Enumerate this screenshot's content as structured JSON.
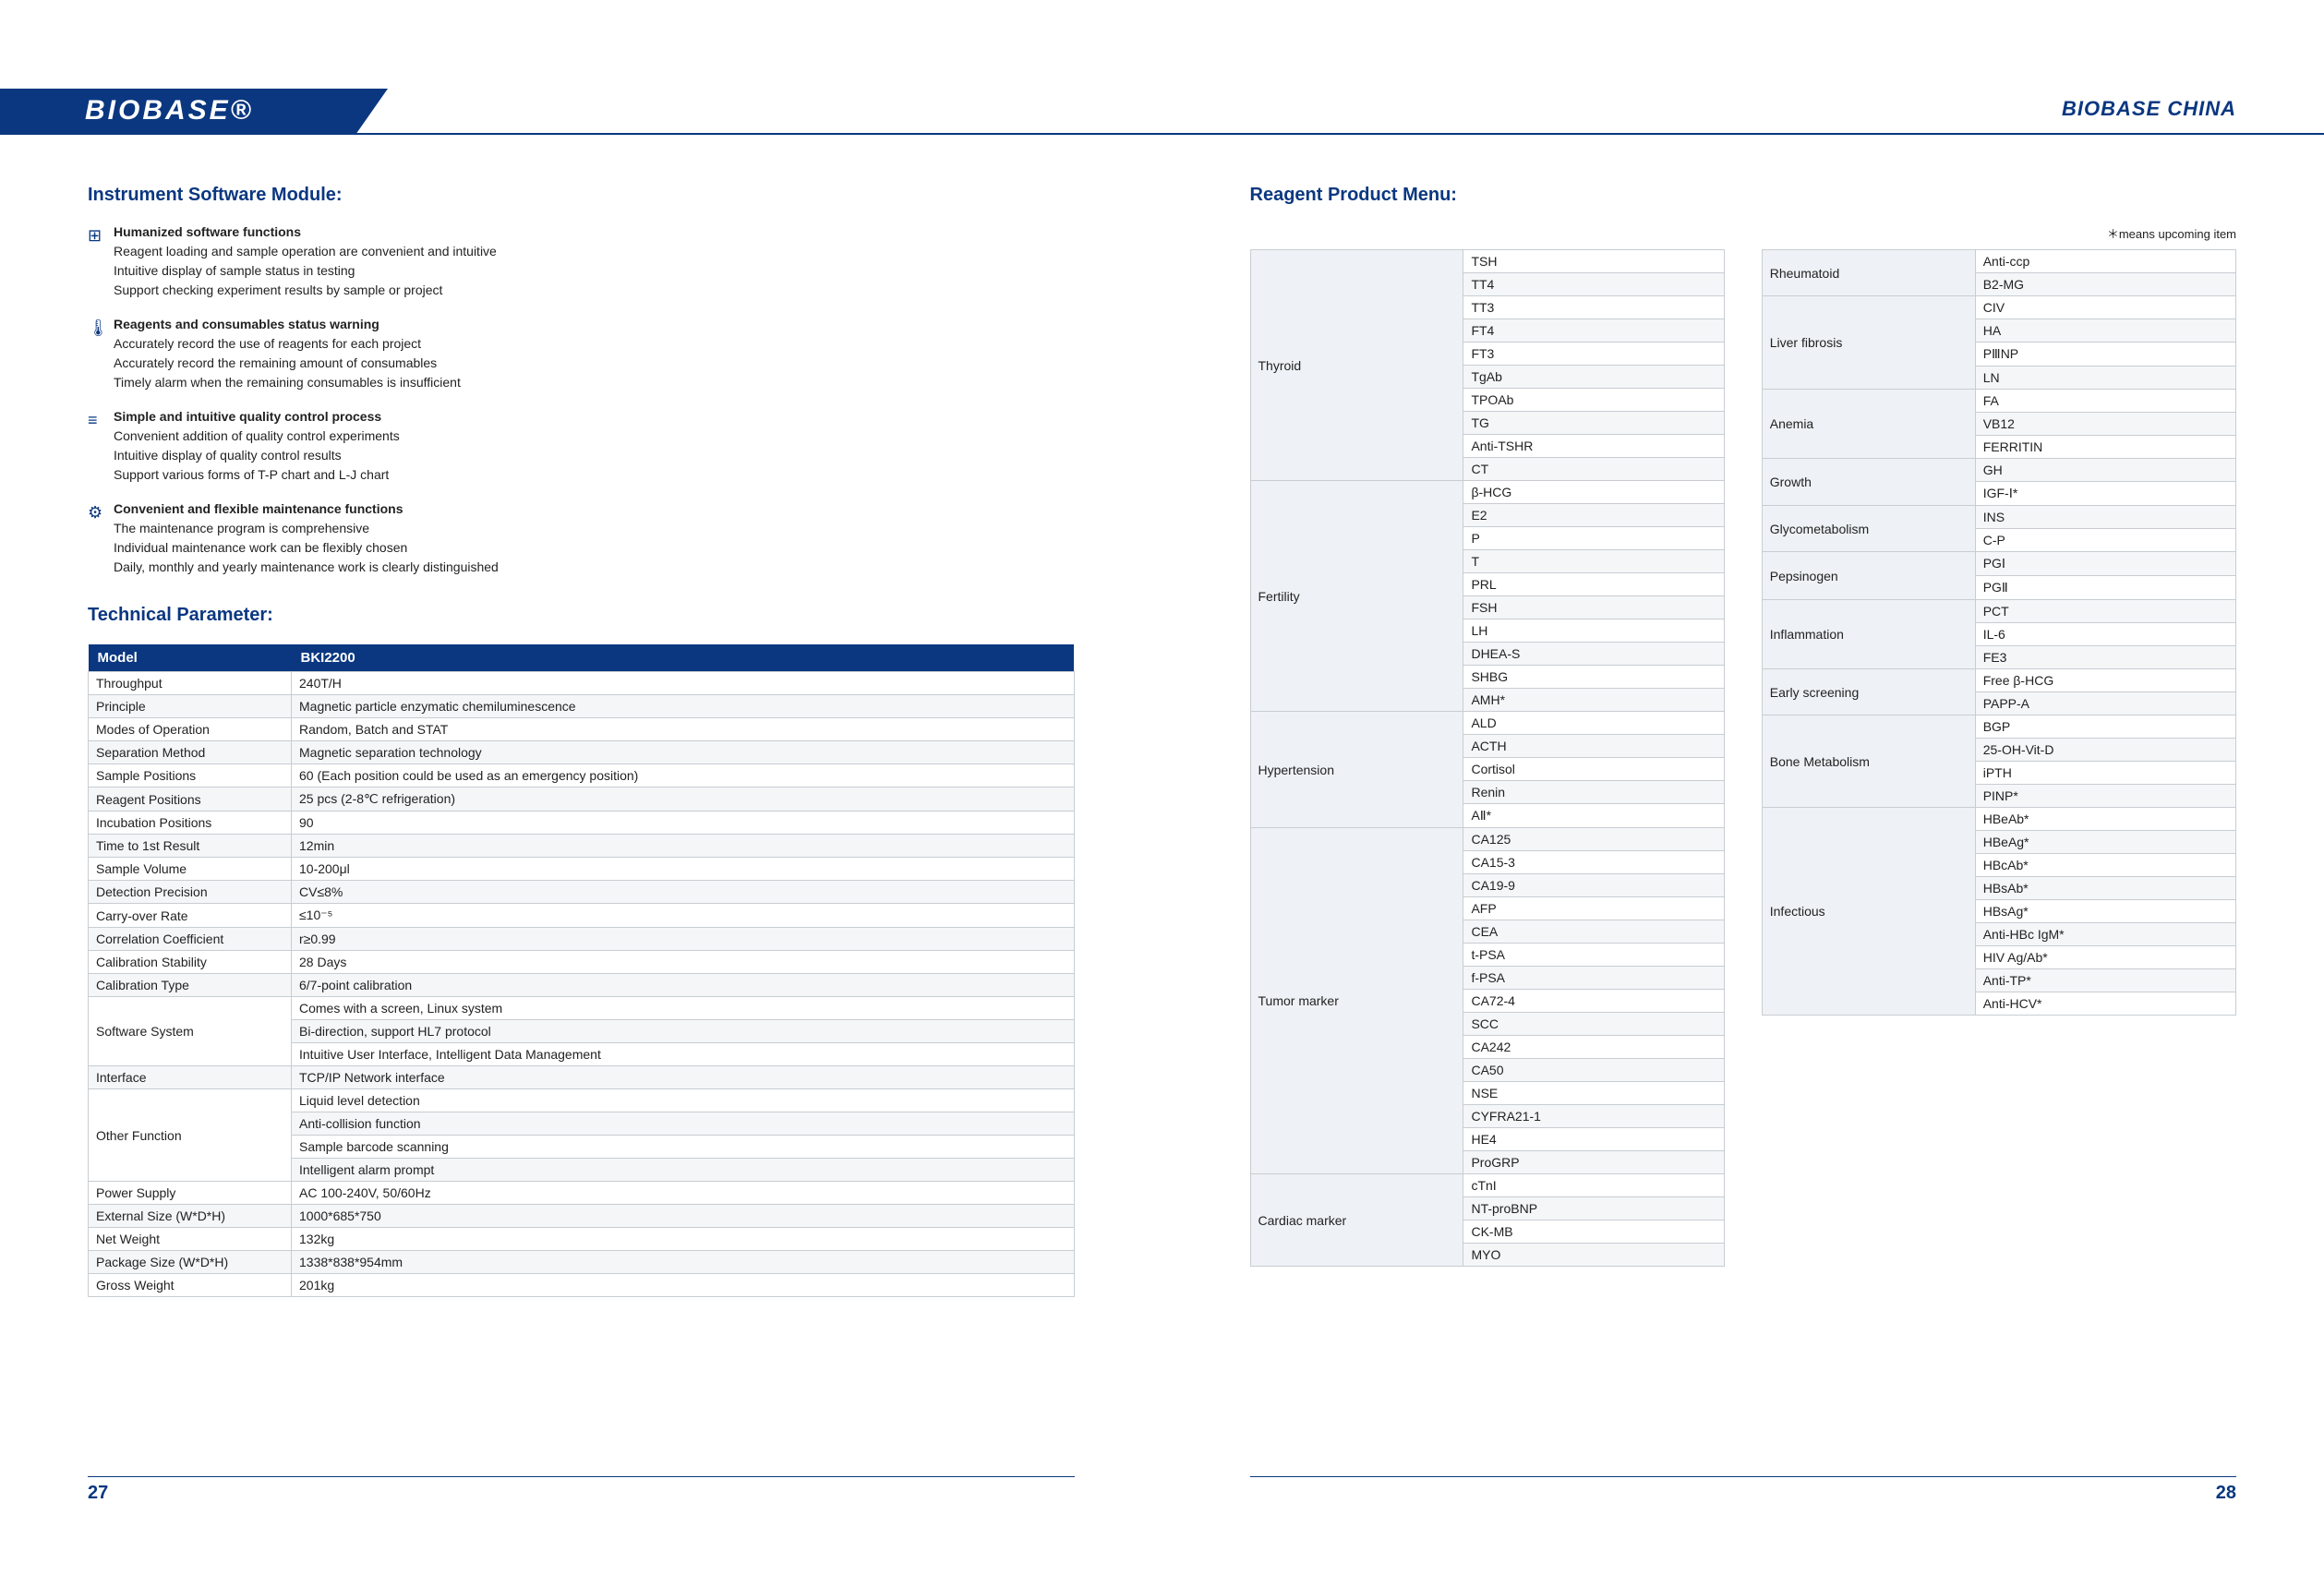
{
  "brand": "BIOBASE®",
  "brand_right": "BIOBASE CHINA",
  "page_left_num": "27",
  "page_right_num": "28",
  "left": {
    "section1_title": "Instrument Software Module:",
    "features": [
      {
        "icon": "⊞",
        "title": "Humanized software functions",
        "lines": [
          "Reagent loading and sample operation are convenient and intuitive",
          "Intuitive display of sample status in testing",
          "Support checking experiment results by sample or project"
        ]
      },
      {
        "icon": "🌡",
        "title": "Reagents and consumables status warning",
        "lines": [
          "Accurately record the use of reagents for each project",
          "Accurately record the remaining amount of consumables",
          "Timely alarm when the remaining consumables is insufficient"
        ]
      },
      {
        "icon": "≡",
        "title": "Simple and intuitive quality control process",
        "lines": [
          "Convenient addition of quality control experiments",
          "Intuitive display of quality control results",
          "Support various forms of T-P chart and L-J chart"
        ]
      },
      {
        "icon": "⚙",
        "title": "Convenient and flexible maintenance functions",
        "lines": [
          "The maintenance program is comprehensive",
          "Individual maintenance work can be flexibly chosen",
          "Daily, monthly and yearly maintenance work is clearly distinguished"
        ]
      }
    ],
    "section2_title": "Technical Parameter:",
    "params_header_label": "Model",
    "params_header_value": "BKI2200",
    "params": [
      [
        "Throughput",
        "240T/H"
      ],
      [
        "Principle",
        "Magnetic particle enzymatic chemiluminescence"
      ],
      [
        "Modes of Operation",
        "Random, Batch and STAT"
      ],
      [
        "Separation Method",
        "Magnetic separation technology"
      ],
      [
        "Sample Positions",
        "60 (Each position could be used as an emergency position)"
      ],
      [
        "Reagent Positions",
        "25 pcs (2-8℃ refrigeration)"
      ],
      [
        "Incubation Positions",
        "90"
      ],
      [
        "Time to 1st Result",
        "12min"
      ],
      [
        "Sample Volume",
        "10-200μl"
      ],
      [
        "Detection Precision",
        "CV≤8%"
      ],
      [
        "Carry-over Rate",
        "≤10⁻⁵"
      ],
      [
        "Correlation Coefficient",
        "r≥0.99"
      ],
      [
        "Calibration Stability",
        "28 Days"
      ],
      [
        "Calibration Type",
        "6/7-point calibration"
      ]
    ],
    "software_label": "Software System",
    "software_rows": [
      "Comes with a screen, Linux system",
      "Bi-direction, support HL7 protocol",
      "Intuitive User Interface, Intelligent Data Management"
    ],
    "interface_label": "Interface",
    "interface_value": "TCP/IP Network interface",
    "other_label": "Other Function",
    "other_rows": [
      "Liquid level detection",
      "Anti-collision function",
      "Sample barcode scanning",
      "Intelligent alarm prompt"
    ],
    "params2": [
      [
        "Power Supply",
        "AC 100-240V, 50/60Hz"
      ],
      [
        "External Size (W*D*H)",
        "1000*685*750"
      ],
      [
        "Net Weight",
        "132kg"
      ],
      [
        "Package Size (W*D*H)",
        "1338*838*954mm"
      ],
      [
        "Gross Weight",
        "201kg"
      ]
    ]
  },
  "right": {
    "section_title": "Reagent Product Menu:",
    "note": "＊means upcoming item",
    "col1": [
      {
        "cat": "Thyroid",
        "items": [
          "TSH",
          "TT4",
          "TT3",
          "FT4",
          "FT3",
          "TgAb",
          "TPOAb",
          "TG",
          "Anti-TSHR",
          "CT"
        ]
      },
      {
        "cat": "Fertility",
        "items": [
          "β-HCG",
          "E2",
          "P",
          "T",
          "PRL",
          "FSH",
          "LH",
          "DHEA-S",
          "SHBG",
          "AMH*"
        ]
      },
      {
        "cat": "Hypertension",
        "items": [
          "ALD",
          "ACTH",
          "Cortisol",
          "Renin",
          "AⅡ*"
        ]
      },
      {
        "cat": "Tumor marker",
        "items": [
          "CA125",
          "CA15-3",
          "CA19-9",
          "AFP",
          "CEA",
          "t-PSA",
          "f-PSA",
          "CA72-4",
          "SCC",
          "CA242",
          "CA50",
          "NSE",
          "CYFRA21-1",
          "HE4",
          "ProGRP"
        ]
      },
      {
        "cat": "Cardiac marker",
        "items": [
          "cTnI",
          "NT-proBNP",
          "CK-MB",
          "MYO"
        ]
      }
    ],
    "col2": [
      {
        "cat": "Rheumatoid",
        "items": [
          "Anti-ccp",
          "B2-MG"
        ]
      },
      {
        "cat": "Liver fibrosis",
        "items": [
          "CIV",
          "HA",
          "PⅢNP",
          "LN"
        ]
      },
      {
        "cat": "Anemia",
        "items": [
          "FA",
          "VB12",
          "FERRITIN"
        ]
      },
      {
        "cat": "Growth",
        "items": [
          "GH",
          "IGF-Ⅰ*"
        ]
      },
      {
        "cat": "Glycometabolism",
        "items": [
          "INS",
          "C-P"
        ]
      },
      {
        "cat": "Pepsinogen",
        "items": [
          "PGⅠ",
          "PGⅡ"
        ]
      },
      {
        "cat": "Inflammation",
        "items": [
          "PCT",
          "IL-6",
          "FE3"
        ]
      },
      {
        "cat": "Early screening",
        "items": [
          "Free β-HCG",
          "PAPP-A"
        ]
      },
      {
        "cat": "Bone Metabolism",
        "items": [
          "BGP",
          "25-OH-Vit-D",
          "iPTH",
          "PINP*"
        ]
      },
      {
        "cat": "Infectious",
        "items": [
          "HBeAb*",
          "HBeAg*",
          "HBcAb*",
          "HBsAb*",
          "HBsAg*",
          "Anti-HBc IgM*",
          "HIV Ag/Ab*",
          "Anti-TP*",
          "Anti-HCV*"
        ]
      }
    ]
  }
}
